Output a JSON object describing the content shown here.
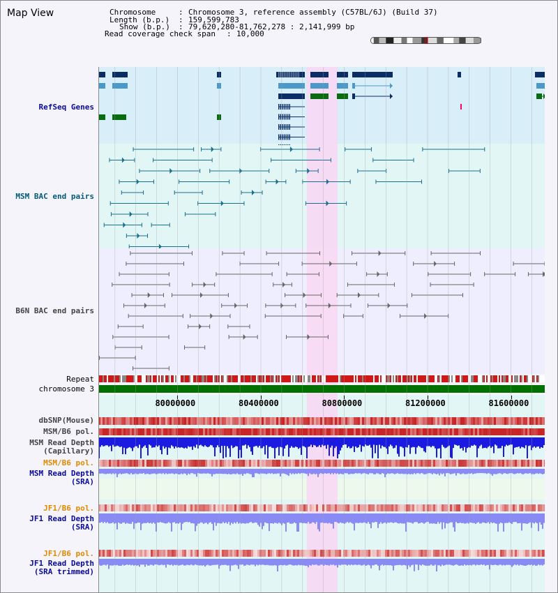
{
  "title": "Map View",
  "header": {
    "chromosome_label": "Chromosome",
    "chromosome_value": "Chromosome 3, reference assembly (C57BL/6J) (Build 37)",
    "length_label": "Length (b.p.)",
    "length_value": "159,599,783",
    "show_label": "Show (b.p.)",
    "show_value": "79,620,280-81,762,278 : 2,141,999 bp",
    "span_label": "Read coverage check span",
    "span_value": "10,000",
    "sep": ":"
  },
  "chromosome_ideogram": {
    "bands": [
      [
        0,
        0.03,
        "#fff"
      ],
      [
        0.03,
        0.08,
        "#555"
      ],
      [
        0.08,
        0.14,
        "#bbb"
      ],
      [
        0.14,
        0.21,
        "#222"
      ],
      [
        0.21,
        0.28,
        "#eee"
      ],
      [
        0.28,
        0.33,
        "#777"
      ],
      [
        0.33,
        0.38,
        "#fff"
      ],
      [
        0.38,
        0.46,
        "#999"
      ],
      [
        0.46,
        0.52,
        "#333"
      ],
      [
        0.52,
        0.6,
        "#ddd"
      ],
      [
        0.6,
        0.66,
        "#666"
      ],
      [
        0.66,
        0.75,
        "#fff"
      ],
      [
        0.75,
        0.8,
        "#aaa"
      ],
      [
        0.8,
        0.86,
        "#444"
      ],
      [
        0.86,
        0.93,
        "#ddd"
      ],
      [
        0.93,
        1,
        "#999"
      ]
    ],
    "highlight_fraction": 0.505
  },
  "track_labels": {
    "refseq": "RefSeq Genes",
    "msm_bac": "MSM BAC end pairs",
    "b6n_bac": "B6N BAC end pairs",
    "repeat": "Repeat",
    "chromosome": "chromosome 3",
    "dbsnp": "dbSNP(Mouse)",
    "msm_b6_pol": "MSM/B6 pol.",
    "msm_read_depth_cap_1": "MSM Read Depth",
    "msm_read_depth_cap_2": "(Capillary)",
    "msm_b6_pol_sra": "MSM/B6 pol.",
    "msm_read_depth_sra_1": "MSM Read Depth",
    "msm_read_depth_sra_2": "(SRA)",
    "jf1_b6_pol": "JF1/B6 pol.",
    "jf1_read_depth_1": "JF1 Read Depth",
    "jf1_read_depth_2": "(SRA)",
    "jf1_b6_pol_trim": "JF1/B6 pol.",
    "jf1_read_depth_trim_1": "JF1 Read Depth",
    "jf1_read_depth_trim_2": "(SRA trimmed)"
  },
  "axis": {
    "start_bp": 79620280,
    "end_bp": 81762278,
    "ticks": [
      "80000000",
      "80400000",
      "80800000",
      "81200000",
      "81600000"
    ],
    "tick_values": [
      80000000,
      80400000,
      80800000,
      81200000,
      81600000
    ]
  },
  "selection": {
    "start_bp": 80620000,
    "end_bp": 80768000
  },
  "colors": {
    "refseq_bg": "#d8eef9",
    "msm_bg": "#e2f6f6",
    "b6n_bg": "#eeeeff",
    "selection": "#f8d8f4",
    "refseq_dark": "#0a2d66",
    "refseq_mid": "#4a99c9",
    "refseq_green": "#0a6b10",
    "msm_line": "#1a6e8e",
    "b6n_line": "#666666",
    "repeat_red": "#d01818",
    "chrom_green": "#007000",
    "read_depth_cap": "#1a1ae0",
    "read_depth_sra": "#8a8af5",
    "label_dark": "#222222",
    "label_blue": "#0a0a9a",
    "label_orange": "#e08a00",
    "label_teal": "#005a7a"
  }
}
